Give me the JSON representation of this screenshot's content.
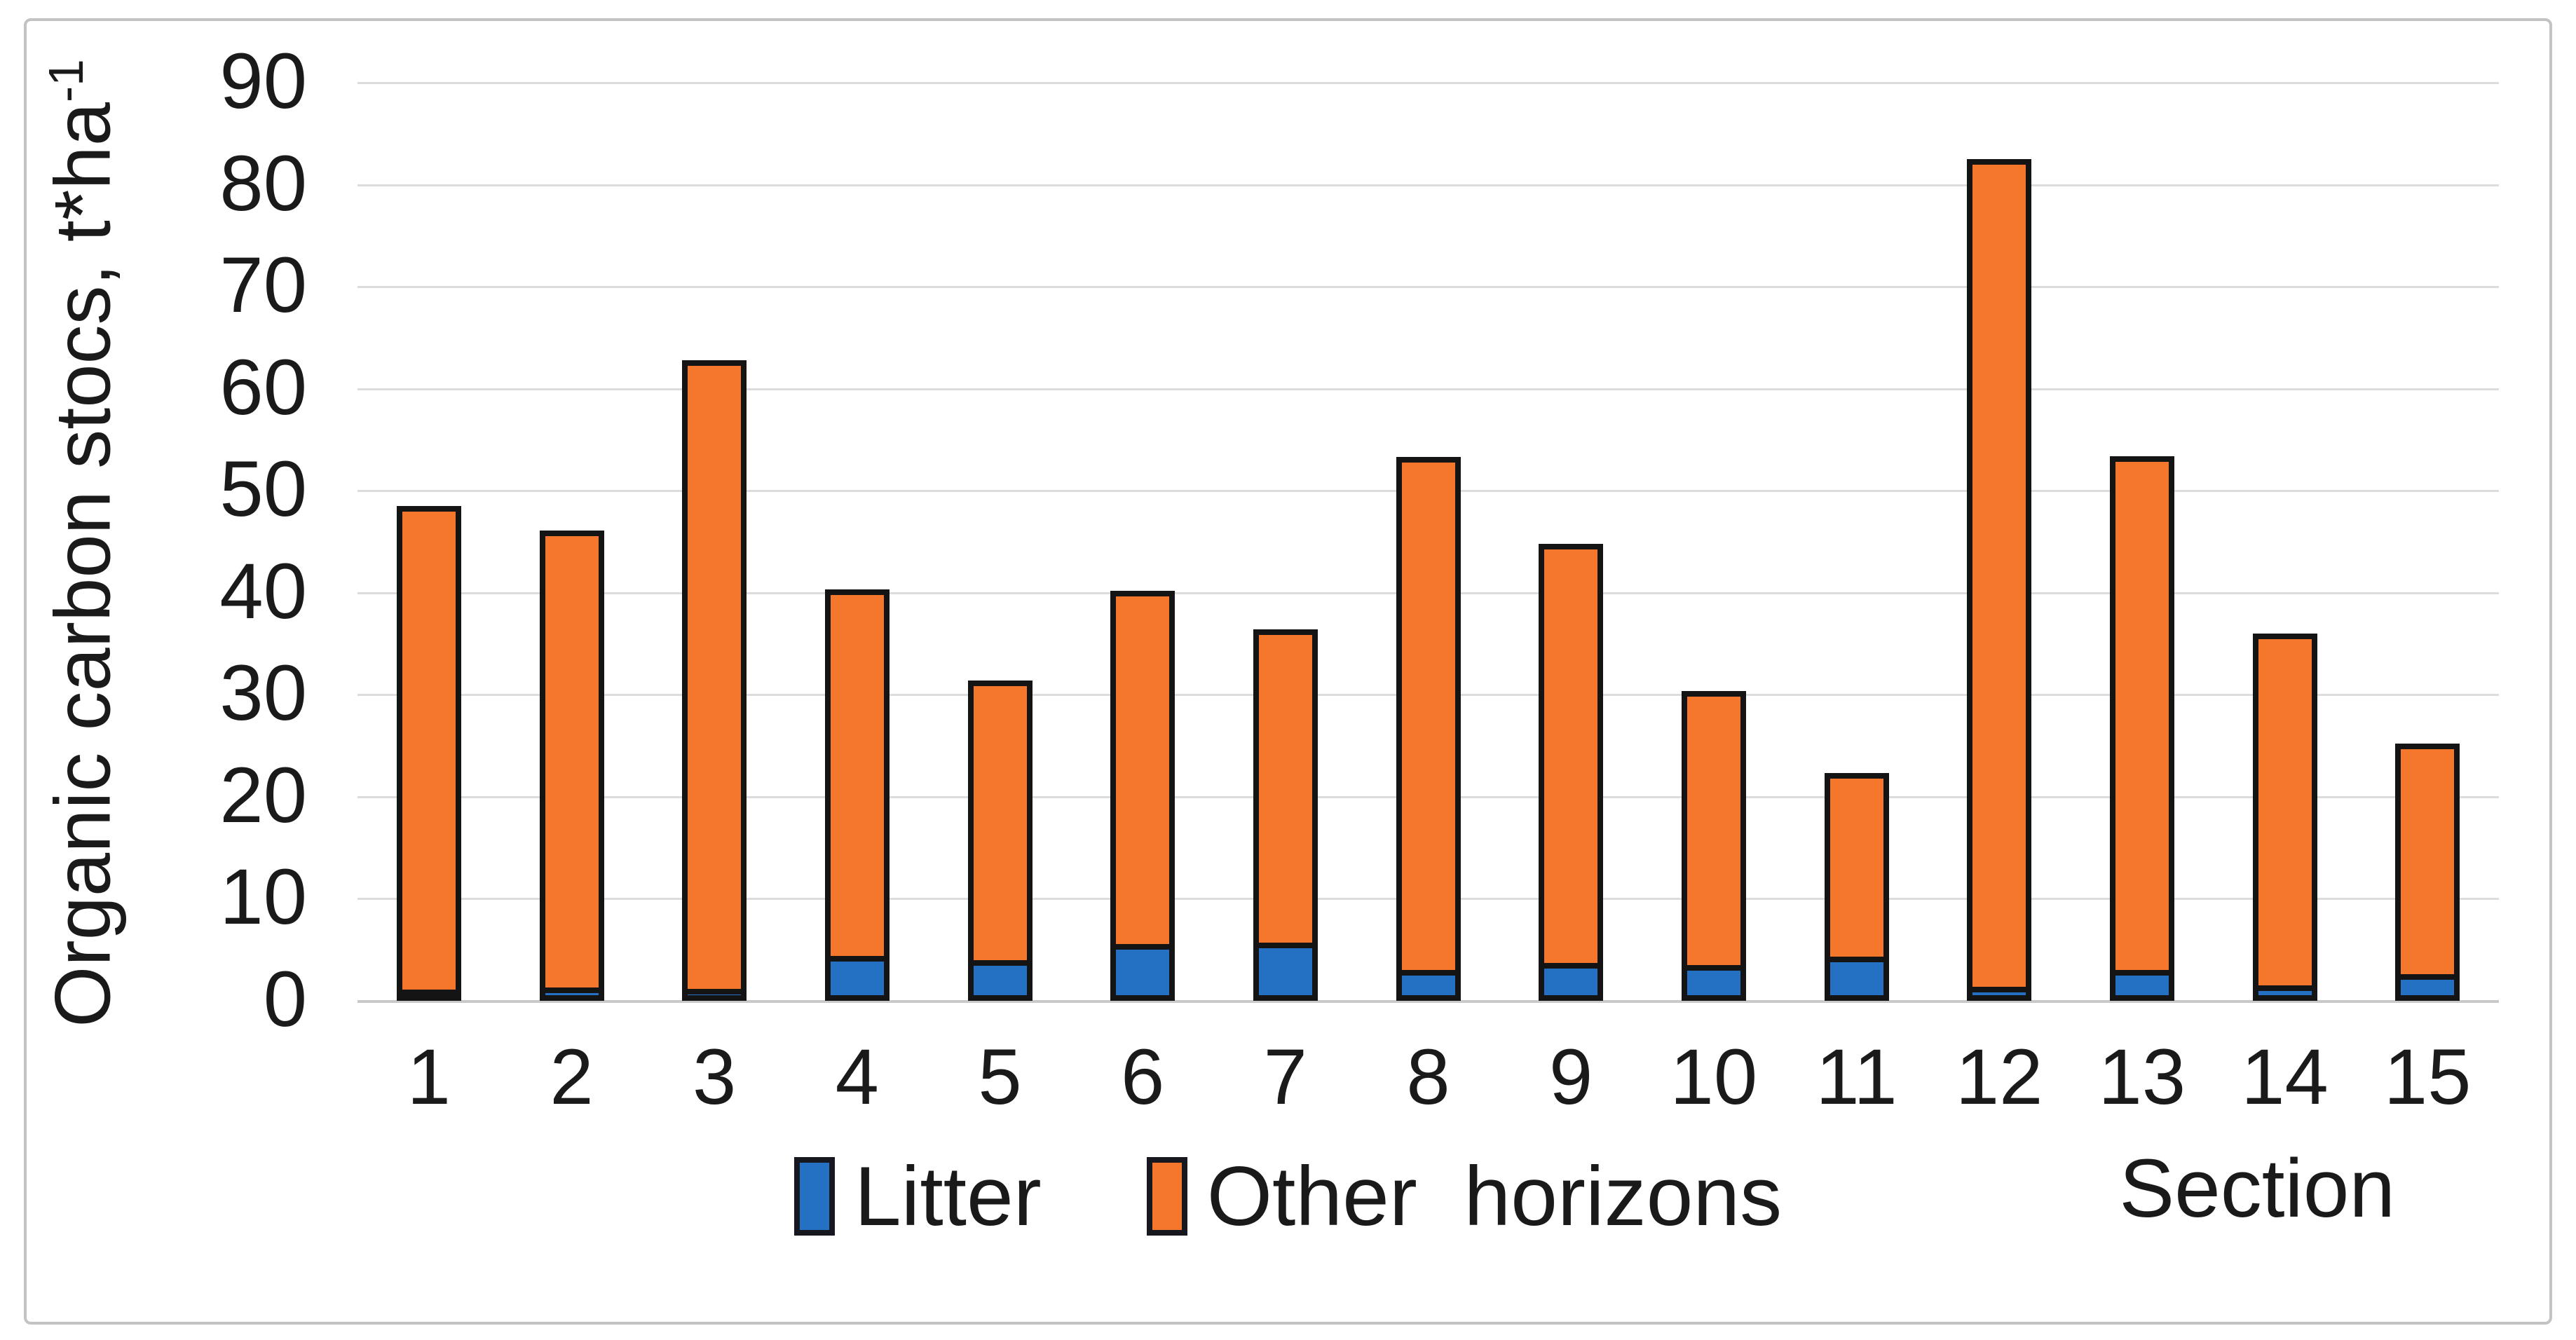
{
  "chart_data": {
    "type": "bar",
    "stacked": true,
    "title": "",
    "categories": [
      "1",
      "2",
      "3",
      "4",
      "5",
      "6",
      "7",
      "8",
      "9",
      "10",
      "11",
      "12",
      "13",
      "14",
      "15"
    ],
    "series": [
      {
        "name": "Litter",
        "color": "#2470c2",
        "values": [
          1.0,
          1.3,
          1.2,
          4.4,
          4.0,
          5.6,
          5.7,
          3.0,
          3.7,
          3.5,
          4.3,
          1.4,
          3.0,
          1.5,
          2.6
        ]
      },
      {
        "name": "Other  horizons",
        "color": "#f4772b",
        "values": [
          47.5,
          44.8,
          61.6,
          35.9,
          27.4,
          34.6,
          30.7,
          50.3,
          41.1,
          26.9,
          18.0,
          81.1,
          50.4,
          34.5,
          22.6
        ]
      }
    ],
    "stack_totals": [
      48.5,
      46.1,
      62.8,
      40.3,
      31.4,
      40.2,
      36.4,
      53.3,
      44.8,
      30.4,
      22.3,
      82.5,
      53.4,
      36.0,
      25.2
    ],
    "ylabel_main": "Organic carbon stocs, t*ha",
    "ylabel_superscript": "-1",
    "xlabel": "Section",
    "ylim": [
      0,
      90
    ],
    "yticks": [
      0,
      10,
      20,
      30,
      40,
      50,
      60,
      70,
      80,
      90
    ],
    "grid": true,
    "legend_position": "bottom-center",
    "bar_border_color": "#141414",
    "gridline_color": "#dcdcdc"
  }
}
